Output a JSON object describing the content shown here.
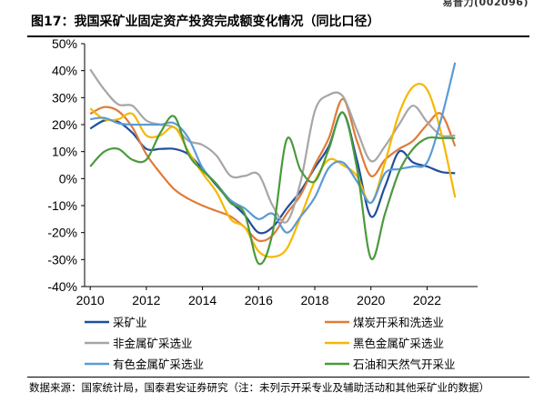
{
  "header": {
    "stock_tag": "易普力(002096)",
    "title": "图17：我国采矿业固定资产投资完成额变化情况（同比口径）"
  },
  "footer": {
    "source": "数据来源：国家统计局，国泰君安证券研究（注：未列示开采专业及辅助活动和其他采矿业的数据）"
  },
  "chart_data": {
    "type": "line",
    "title": "图17：我国采矿业固定资产投资完成额变化情况（同比口径）",
    "xlabel": "",
    "ylabel": "",
    "xlim": [
      2009.8,
      2023.8
    ],
    "ylim": [
      -40,
      50
    ],
    "y_ticks": [
      -40,
      -30,
      -20,
      -10,
      0,
      10,
      20,
      30,
      40,
      50
    ],
    "y_tick_labels": [
      "-40%",
      "-30%",
      "-20%",
      "-10%",
      "0%",
      "10%",
      "20%",
      "30%",
      "40%",
      "50%"
    ],
    "x_ticks": [
      2010,
      2012,
      2014,
      2016,
      2018,
      2020,
      2022
    ],
    "x_tick_labels": [
      "2010",
      "2012",
      "2014",
      "2016",
      "2018",
      "2020",
      "2022"
    ],
    "grid": false,
    "legend_position": "bottom",
    "series": [
      {
        "name": "采矿业",
        "color": "#1f4e9c",
        "points": [
          [
            2010,
            18.5
          ],
          [
            2010.5,
            21.5
          ],
          [
            2011,
            21
          ],
          [
            2011.5,
            17
          ],
          [
            2012,
            11
          ],
          [
            2012.5,
            11
          ],
          [
            2013,
            11
          ],
          [
            2013.5,
            9
          ],
          [
            2014,
            3.5
          ],
          [
            2014.5,
            -2.5
          ],
          [
            2015,
            -8.5
          ],
          [
            2015.5,
            -13.5
          ],
          [
            2016,
            -20
          ],
          [
            2016.5,
            -18
          ],
          [
            2017,
            -11
          ],
          [
            2017.5,
            -4.5
          ],
          [
            2018,
            4
          ],
          [
            2018.5,
            12
          ],
          [
            2019,
            24.5
          ],
          [
            2019.5,
            7
          ],
          [
            2020,
            -14
          ],
          [
            2020.5,
            -3
          ],
          [
            2021,
            10
          ],
          [
            2021.5,
            6
          ],
          [
            2022,
            4.5
          ],
          [
            2022.5,
            2.5
          ],
          [
            2023,
            2
          ]
        ]
      },
      {
        "name": "煤炭开采和洗选业",
        "color": "#e07b39",
        "points": [
          [
            2010,
            24
          ],
          [
            2010.5,
            26.5
          ],
          [
            2011,
            25
          ],
          [
            2011.5,
            19
          ],
          [
            2012,
            9
          ],
          [
            2012.5,
            2
          ],
          [
            2013,
            -4
          ],
          [
            2013.5,
            -7.5
          ],
          [
            2014,
            -10
          ],
          [
            2014.5,
            -12
          ],
          [
            2015,
            -14
          ],
          [
            2015.5,
            -18
          ],
          [
            2016,
            -23
          ],
          [
            2016.5,
            -21
          ],
          [
            2017,
            -13
          ],
          [
            2017.5,
            -6
          ],
          [
            2018,
            5
          ],
          [
            2018.5,
            15
          ],
          [
            2019,
            29.5
          ],
          [
            2019.5,
            14
          ],
          [
            2020,
            1
          ],
          [
            2020.5,
            7
          ],
          [
            2021,
            11
          ],
          [
            2021.5,
            14
          ],
          [
            2022,
            20
          ],
          [
            2022.5,
            24
          ],
          [
            2023,
            12
          ]
        ]
      },
      {
        "name": "非金属矿采选业",
        "color": "#a6a6a6",
        "points": [
          [
            2010,
            40.5
          ],
          [
            2010.5,
            33
          ],
          [
            2011,
            27.5
          ],
          [
            2011.5,
            27
          ],
          [
            2012,
            21.5
          ],
          [
            2012.5,
            20
          ],
          [
            2013,
            19
          ],
          [
            2013.5,
            14
          ],
          [
            2014,
            12.5
          ],
          [
            2014.5,
            8.5
          ],
          [
            2015,
            1
          ],
          [
            2015.5,
            1
          ],
          [
            2016,
            1.5
          ],
          [
            2016.5,
            -10
          ],
          [
            2017,
            -16
          ],
          [
            2017.5,
            -1
          ],
          [
            2018,
            25
          ],
          [
            2018.5,
            31
          ],
          [
            2019,
            30.5
          ],
          [
            2019.5,
            18
          ],
          [
            2020,
            6.5
          ],
          [
            2020.5,
            12
          ],
          [
            2021,
            20
          ],
          [
            2021.5,
            27
          ],
          [
            2022,
            21
          ],
          [
            2022.5,
            16
          ],
          [
            2023,
            16
          ]
        ]
      },
      {
        "name": "黑色金属矿采选业",
        "color": "#f5b800",
        "points": [
          [
            2010,
            26
          ],
          [
            2010.5,
            22
          ],
          [
            2011,
            22
          ],
          [
            2011.5,
            24
          ],
          [
            2012,
            16
          ],
          [
            2012.5,
            16
          ],
          [
            2013,
            19
          ],
          [
            2013.5,
            10
          ],
          [
            2014,
            2
          ],
          [
            2014.5,
            -5
          ],
          [
            2015,
            -15
          ],
          [
            2015.5,
            -18
          ],
          [
            2016,
            -27
          ],
          [
            2016.5,
            -29
          ],
          [
            2017,
            -26
          ],
          [
            2017.5,
            -14
          ],
          [
            2018,
            -1
          ],
          [
            2018.5,
            7
          ],
          [
            2019,
            5
          ],
          [
            2019.5,
            1
          ],
          [
            2020,
            -9
          ],
          [
            2020.5,
            6
          ],
          [
            2021,
            24
          ],
          [
            2021.5,
            34
          ],
          [
            2022,
            33
          ],
          [
            2022.5,
            17
          ],
          [
            2023,
            -7
          ]
        ]
      },
      {
        "name": "有色金属矿采选业",
        "color": "#5b9bd5",
        "points": [
          [
            2010,
            22
          ],
          [
            2010.5,
            22.5
          ],
          [
            2011,
            20.5
          ],
          [
            2011.5,
            20
          ],
          [
            2012,
            20
          ],
          [
            2012.5,
            20
          ],
          [
            2013,
            20.5
          ],
          [
            2013.5,
            15
          ],
          [
            2014,
            4
          ],
          [
            2014.5,
            -2
          ],
          [
            2015,
            -8
          ],
          [
            2015.5,
            -11
          ],
          [
            2016,
            -15
          ],
          [
            2016.5,
            -13
          ],
          [
            2017,
            -20
          ],
          [
            2017.5,
            -14
          ],
          [
            2018,
            -7
          ],
          [
            2018.5,
            4
          ],
          [
            2019,
            6
          ],
          [
            2019.5,
            -1
          ],
          [
            2020,
            -9
          ],
          [
            2020.5,
            2
          ],
          [
            2021,
            3.5
          ],
          [
            2021.5,
            4.5
          ],
          [
            2022,
            6
          ],
          [
            2022.5,
            22
          ],
          [
            2023,
            43
          ]
        ]
      },
      {
        "name": "石油和天然气开采业",
        "color": "#4a9a3d",
        "points": [
          [
            2010,
            4.5
          ],
          [
            2010.5,
            10
          ],
          [
            2011,
            11
          ],
          [
            2011.5,
            7
          ],
          [
            2012,
            7
          ],
          [
            2012.5,
            17
          ],
          [
            2013,
            23
          ],
          [
            2013.5,
            9
          ],
          [
            2014,
            3
          ],
          [
            2014.5,
            -2
          ],
          [
            2015,
            -9
          ],
          [
            2015.5,
            -13
          ],
          [
            2016,
            -31.5
          ],
          [
            2016.5,
            -20
          ],
          [
            2017,
            14.5
          ],
          [
            2017.5,
            3
          ],
          [
            2018,
            -1
          ],
          [
            2018.5,
            11
          ],
          [
            2019,
            24.5
          ],
          [
            2019.5,
            4
          ],
          [
            2020,
            -29.5
          ],
          [
            2020.5,
            -13
          ],
          [
            2021,
            2.5
          ],
          [
            2021.5,
            11
          ],
          [
            2022,
            15
          ],
          [
            2022.5,
            15
          ],
          [
            2023,
            15
          ]
        ]
      }
    ]
  }
}
